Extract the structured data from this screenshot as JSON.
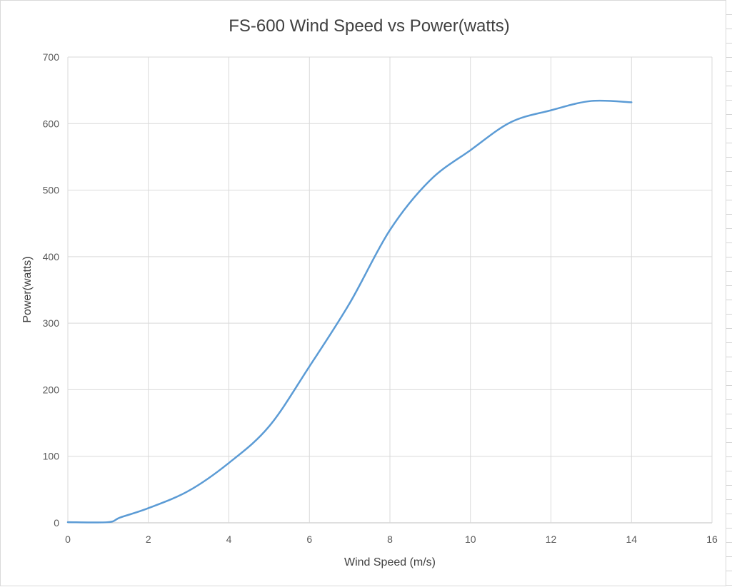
{
  "chart_data": {
    "type": "line",
    "title": "FS-600 Wind Speed vs Power(watts)",
    "xlabel": "Wind Speed (m/s)",
    "ylabel": "Power(watts)",
    "xlim": [
      0,
      16
    ],
    "ylim": [
      0,
      700
    ],
    "x_ticks": [
      "0",
      "2",
      "4",
      "6",
      "8",
      "10",
      "12",
      "14",
      "16"
    ],
    "y_ticks": [
      "0",
      "100",
      "200",
      "300",
      "400",
      "500",
      "600",
      "700"
    ],
    "grid": true,
    "legend": "none",
    "series": [
      {
        "color": "#5b9bd5",
        "smooth": true,
        "x": [
          0,
          1,
          1.3,
          2,
          3,
          4,
          5,
          6,
          7,
          8,
          9,
          10,
          11,
          12,
          13,
          14
        ],
        "y": [
          1,
          1,
          8,
          22,
          48,
          90,
          145,
          235,
          330,
          440,
          515,
          560,
          602,
          620,
          634,
          632
        ]
      }
    ]
  }
}
